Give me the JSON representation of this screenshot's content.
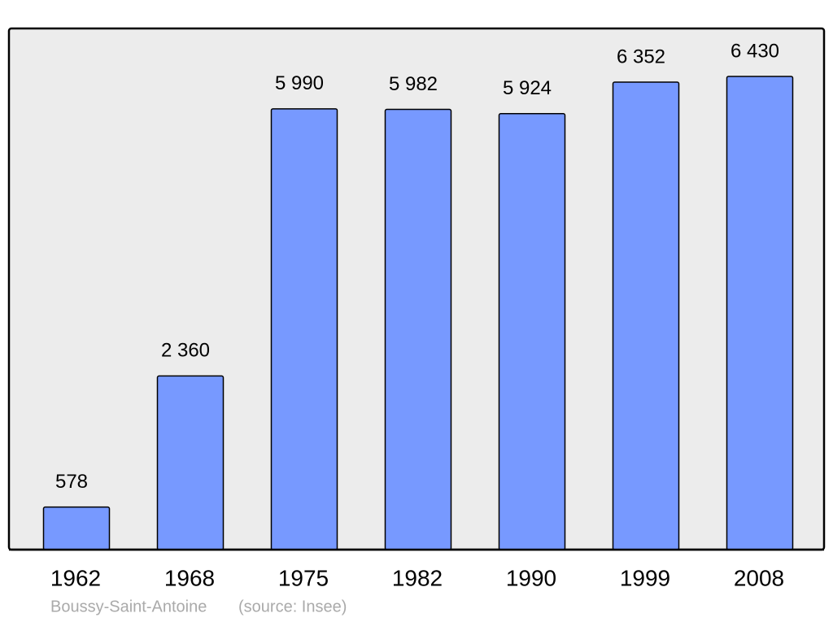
{
  "chart_data": {
    "type": "bar",
    "categories": [
      "1962",
      "1968",
      "1975",
      "1982",
      "1990",
      "1999",
      "2008"
    ],
    "values": [
      578,
      2360,
      5990,
      5982,
      5924,
      6352,
      6430
    ],
    "value_labels": [
      "578",
      "2 360",
      "5 990",
      "5 982",
      "5 924",
      "6 352",
      "6 430"
    ],
    "color": "#7799ff",
    "caption": "Boussy-Saint-Antoine",
    "source": "(source: Insee)"
  }
}
